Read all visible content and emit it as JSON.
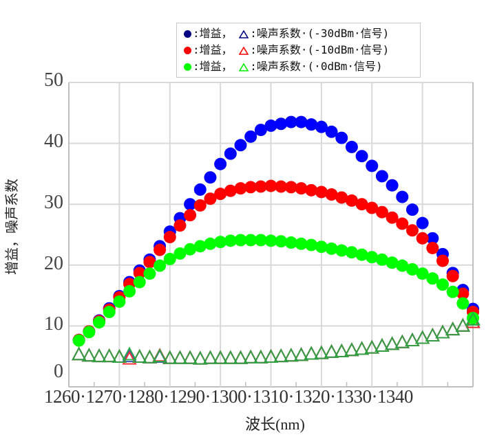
{
  "chart_data": {
    "type": "scatter",
    "title": "",
    "xlabel": "波长(nm)",
    "ylabel": "增益，噪声系数",
    "xlim": [
      1260,
      1340
    ],
    "ylim": [
      0,
      50
    ],
    "x_ticks": [
      "1260",
      "1270",
      "1280",
      "1290",
      "1300",
      "1310",
      "1320",
      "1330",
      "1340"
    ],
    "x_tick_label_text": "1260·1270·1280·1290·1300·1310·1320·1330·1340",
    "y_ticks": [
      0,
      10,
      20,
      30,
      40,
      50
    ],
    "grid": true,
    "legend_position": "top-right",
    "x": [
      1262,
      1264,
      1266,
      1268,
      1270,
      1272,
      1274,
      1276,
      1278,
      1280,
      1282,
      1284,
      1286,
      1288,
      1290,
      1292,
      1294,
      1296,
      1298,
      1300,
      1302,
      1304,
      1306,
      1308,
      1310,
      1312,
      1314,
      1316,
      1318,
      1320,
      1322,
      1324,
      1326,
      1328,
      1330,
      1332,
      1334,
      1336,
      1338,
      1340
    ],
    "series": [
      {
        "name": "增益 (-30dBm 信号)",
        "marker": "circle",
        "color": "#0000ff",
        "values": [
          7.7,
          9.1,
          10.9,
          12.9,
          14.9,
          17.2,
          19.1,
          20.9,
          23.1,
          25.5,
          27.7,
          30.0,
          32.4,
          34.4,
          36.6,
          38.3,
          39.7,
          41.1,
          42.2,
          42.9,
          43.2,
          43.5,
          43.5,
          43.1,
          42.7,
          41.9,
          40.9,
          39.4,
          37.9,
          36.3,
          34.6,
          33.1,
          31.2,
          29.1,
          26.9,
          24.4,
          21.8,
          18.7,
          15.9,
          12.8
        ]
      },
      {
        "name": "增益 (-10dBm 信号)",
        "marker": "circle",
        "color": "#ff0000",
        "values": [
          7.7,
          9.1,
          10.8,
          12.7,
          14.7,
          16.9,
          18.7,
          20.5,
          22.5,
          24.6,
          26.5,
          28.2,
          29.8,
          30.9,
          31.7,
          32.2,
          32.6,
          32.8,
          32.9,
          33.0,
          32.9,
          32.8,
          32.6,
          32.3,
          32.0,
          31.6,
          31.1,
          30.6,
          30.0,
          29.4,
          28.7,
          27.8,
          26.8,
          25.7,
          24.4,
          22.8,
          20.7,
          18.2,
          15.3,
          12.3
        ]
      },
      {
        "name": "增益 (0dBm 信号)",
        "marker": "circle",
        "color": "#00ff00",
        "values": [
          7.6,
          9.0,
          10.6,
          12.3,
          14.0,
          15.7,
          17.2,
          18.6,
          19.9,
          21.0,
          21.9,
          22.6,
          23.1,
          23.5,
          23.8,
          24.0,
          24.1,
          24.1,
          24.1,
          24.0,
          23.9,
          23.7,
          23.5,
          23.3,
          23.0,
          22.7,
          22.4,
          22.1,
          21.7,
          21.3,
          20.9,
          20.4,
          19.9,
          19.3,
          18.6,
          17.8,
          16.8,
          15.6,
          13.7,
          11.3
        ]
      },
      {
        "name": "噪声系数 (-30dBm 信号)",
        "marker": "triangle",
        "color": "#2244aa",
        "values": [
          5.2,
          5.0,
          4.9,
          4.9,
          4.8,
          4.9,
          4.8,
          4.7,
          4.8,
          4.6,
          4.6,
          4.6,
          4.5,
          4.6,
          4.6,
          4.6,
          4.6,
          4.7,
          4.7,
          4.8,
          4.9,
          5.0,
          5.1,
          5.3,
          5.4,
          5.6,
          5.7,
          5.9,
          6.1,
          6.3,
          6.6,
          6.9,
          7.2,
          7.5,
          7.9,
          8.3,
          8.8,
          9.3,
          9.9,
          10.5
        ]
      },
      {
        "name": "噪声系数 (-10dBm 信号)",
        "marker": "triangle",
        "color": "#ff2020",
        "values": [
          5.2,
          5.0,
          4.9,
          4.9,
          4.8,
          4.5,
          4.8,
          4.7,
          5.0,
          4.6,
          4.6,
          4.6,
          4.5,
          4.6,
          4.6,
          4.6,
          4.6,
          4.7,
          4.7,
          4.8,
          4.9,
          5.0,
          5.1,
          5.3,
          5.4,
          5.6,
          5.7,
          5.9,
          6.1,
          6.3,
          6.6,
          6.9,
          7.2,
          7.5,
          7.9,
          8.3,
          8.8,
          9.3,
          9.9,
          10.5
        ]
      },
      {
        "name": "噪声系数 (0dBm 信号)",
        "marker": "triangle",
        "color": "#22aa44",
        "values": [
          5.2,
          5.0,
          4.9,
          4.9,
          4.8,
          5.2,
          4.8,
          4.7,
          4.9,
          4.6,
          4.6,
          4.6,
          4.5,
          4.6,
          4.6,
          4.6,
          4.6,
          4.7,
          4.7,
          4.8,
          4.9,
          5.0,
          5.1,
          5.3,
          5.4,
          5.6,
          5.7,
          5.9,
          6.1,
          6.3,
          6.6,
          6.9,
          7.2,
          7.5,
          7.9,
          8.3,
          8.8,
          9.3,
          9.9,
          10.9
        ]
      }
    ]
  },
  "legend": {
    "rows": [
      {
        "gain_label": ":增益，",
        "nf_label": ":噪声系数·(-30dBm·信号)",
        "dot_color": "#000080",
        "tri_color": "#000080"
      },
      {
        "gain_label": ":增益，",
        "nf_label": ":噪声系数·(-10dBm·信号)",
        "dot_color": "#ff0000",
        "tri_color": "#ff0000"
      },
      {
        "gain_label": ":增益，",
        "nf_label": ":噪声系数·(·0dBm·信号)",
        "dot_color": "#00ff00",
        "tri_color": "#00ee00"
      }
    ]
  },
  "axes": {
    "ylabel": "增益，噪声系数",
    "xlabel": "波长(nm)",
    "xticks_text": "1260·1270·1280·1290·1300·1310·1320·1330·1340",
    "yticks": [
      "50",
      "40",
      "30",
      "20",
      "10",
      "0"
    ]
  },
  "style": {
    "grid_color": "#d9d9d9",
    "axis_color": "#bfbfbf"
  }
}
